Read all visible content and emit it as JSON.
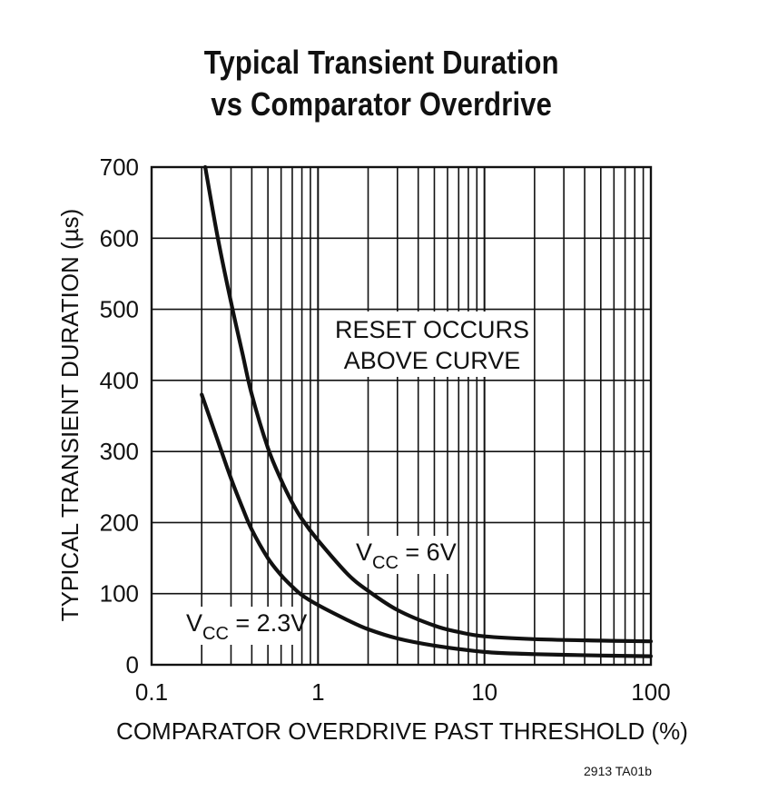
{
  "title": {
    "line1": "Typical Transient Duration",
    "line2": "vs Comparator Overdrive"
  },
  "figure_id": "2913 TA01b",
  "chart_data": {
    "type": "line",
    "title": "Typical Transient Duration vs Comparator Overdrive",
    "xlabel": "COMPARATOR OVERDRIVE PAST THRESHOLD (%)",
    "ylabel": "TYPICAL TRANSIENT DURATION (µs)",
    "xscale": "log",
    "xlim": [
      0.1,
      100
    ],
    "ylim": [
      0,
      700
    ],
    "x_ticks": [
      0.1,
      1,
      10,
      100
    ],
    "x_tick_labels": [
      "0.1",
      "1",
      "10",
      "100"
    ],
    "y_ticks": [
      0,
      100,
      200,
      300,
      400,
      500,
      600,
      700
    ],
    "y_tick_labels": [
      "0",
      "100",
      "200",
      "300",
      "400",
      "500",
      "600",
      "700"
    ],
    "grid": true,
    "annotations": [
      {
        "text": "RESET OCCURS",
        "text2": "ABOVE CURVE"
      }
    ],
    "series": [
      {
        "name": "VCC = 6V",
        "label_main": "V",
        "label_sub": "CC",
        "label_rest": " = 6V",
        "x": [
          0.21,
          0.25,
          0.3,
          0.35,
          0.4,
          0.5,
          0.6,
          0.7,
          0.8,
          1,
          1.5,
          2,
          3,
          5,
          7,
          10,
          20,
          50,
          100
        ],
        "y": [
          700,
          600,
          510,
          440,
          380,
          305,
          260,
          228,
          205,
          175,
          128,
          104,
          77,
          55,
          46,
          40,
          36,
          34,
          33
        ]
      },
      {
        "name": "VCC = 2.3V",
        "label_main": "V",
        "label_sub": "CC",
        "label_rest": " = 2.3V",
        "x": [
          0.2,
          0.25,
          0.3,
          0.35,
          0.4,
          0.5,
          0.6,
          0.7,
          0.8,
          1,
          1.5,
          2,
          3,
          5,
          10,
          20,
          50,
          100
        ],
        "y": [
          380,
          315,
          262,
          222,
          190,
          150,
          126,
          110,
          98,
          84,
          63,
          50,
          37,
          27,
          18,
          15,
          13,
          12
        ]
      }
    ]
  }
}
